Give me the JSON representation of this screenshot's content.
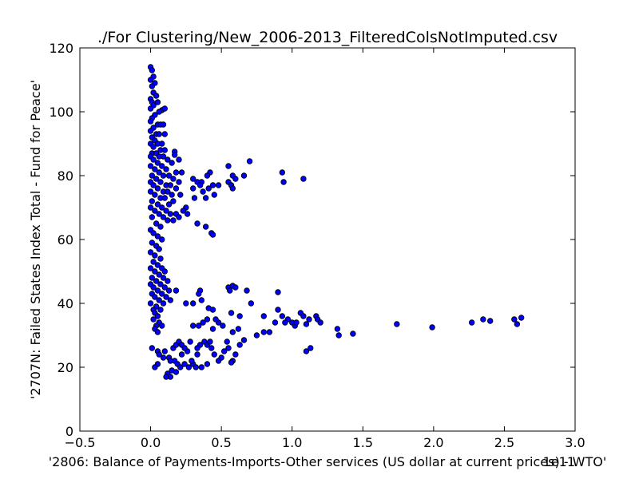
{
  "chart_data": {
    "type": "scatter",
    "title": "./For Clustering/New_2006-2013_FilteredColsNotImputed.csv",
    "xlabel": "'2806: Balance of Payments-Imports-Other services (US dollar at current prices) - WTO'",
    "ylabel": "'2707N: Failed States Index Total - Fund for Peace'",
    "x_offset_label": "1e11",
    "xlim": [
      -0.5,
      3.0
    ],
    "ylim": [
      0,
      120
    ],
    "x_ticks": [
      -0.5,
      0.0,
      0.5,
      1.0,
      1.5,
      2.0,
      2.5,
      3.0
    ],
    "x_tick_labels": [
      "−0.5",
      "0.0",
      "0.5",
      "1.0",
      "1.5",
      "2.0",
      "2.5",
      "3.0"
    ],
    "y_ticks": [
      0,
      20,
      40,
      60,
      80,
      100,
      120
    ],
    "y_tick_labels": [
      "0",
      "20",
      "40",
      "60",
      "80",
      "100",
      "120"
    ],
    "grid": false,
    "marker_color": "#0000ff",
    "marker_edge_color": "#000000",
    "points": [
      [
        0.0,
        114
      ],
      [
        0.01,
        113
      ],
      [
        0.02,
        111
      ],
      [
        0.0,
        110
      ],
      [
        0.03,
        109
      ],
      [
        0.01,
        108
      ],
      [
        0.02,
        106
      ],
      [
        0.04,
        105
      ],
      [
        0.0,
        104
      ],
      [
        0.01,
        103
      ],
      [
        0.05,
        103
      ],
      [
        0.02,
        102
      ],
      [
        0.0,
        101
      ],
      [
        0.08,
        100.5
      ],
      [
        0.1,
        101
      ],
      [
        0.06,
        100
      ],
      [
        0.03,
        99
      ],
      [
        0.01,
        98
      ],
      [
        0.0,
        97
      ],
      [
        0.05,
        96
      ],
      [
        0.07,
        96
      ],
      [
        0.09,
        96
      ],
      [
        0.02,
        95
      ],
      [
        0.0,
        94
      ],
      [
        0.04,
        93
      ],
      [
        0.06,
        93
      ],
      [
        0.1,
        93
      ],
      [
        0.01,
        92
      ],
      [
        0.03,
        91
      ],
      [
        0.0,
        90
      ],
      [
        0.05,
        90
      ],
      [
        0.08,
        90
      ],
      [
        0.02,
        89
      ],
      [
        0.07,
        88
      ],
      [
        0.1,
        88
      ],
      [
        0.17,
        87.5
      ],
      [
        0.01,
        87
      ],
      [
        0.04,
        87
      ],
      [
        0.17,
        86.5
      ],
      [
        0.0,
        86
      ],
      [
        0.06,
        86
      ],
      [
        0.09,
        86
      ],
      [
        0.12,
        85
      ],
      [
        0.2,
        85
      ],
      [
        0.02,
        85
      ],
      [
        0.05,
        84
      ],
      [
        0.15,
        84
      ],
      [
        0.08,
        83
      ],
      [
        0.0,
        83
      ],
      [
        0.11,
        82
      ],
      [
        0.03,
        82
      ],
      [
        0.18,
        81
      ],
      [
        0.22,
        81
      ],
      [
        0.06,
        81
      ],
      [
        0.01,
        80
      ],
      [
        0.13,
        80
      ],
      [
        0.09,
        80
      ],
      [
        0.16,
        79
      ],
      [
        0.04,
        79
      ],
      [
        0.0,
        78
      ],
      [
        0.2,
        78
      ],
      [
        0.07,
        78
      ],
      [
        0.11,
        77
      ],
      [
        0.14,
        77
      ],
      [
        0.02,
        77
      ],
      [
        0.18,
        76
      ],
      [
        0.05,
        76
      ],
      [
        0.09,
        75
      ],
      [
        0.12,
        75
      ],
      [
        0.0,
        75
      ],
      [
        0.15,
        74
      ],
      [
        0.03,
        74
      ],
      [
        0.21,
        74
      ],
      [
        0.07,
        73
      ],
      [
        0.1,
        73
      ],
      [
        0.01,
        72
      ],
      [
        0.16,
        72
      ],
      [
        0.05,
        71
      ],
      [
        0.13,
        71
      ],
      [
        0.0,
        70
      ],
      [
        0.08,
        70
      ],
      [
        0.11,
        69
      ],
      [
        0.03,
        69
      ],
      [
        0.14,
        68
      ],
      [
        0.18,
        68
      ],
      [
        0.06,
        68
      ],
      [
        0.2,
        67
      ],
      [
        0.09,
        67
      ],
      [
        0.01,
        67
      ],
      [
        0.12,
        66
      ],
      [
        0.16,
        66
      ],
      [
        0.04,
        65
      ],
      [
        0.07,
        64
      ],
      [
        0.0,
        63
      ],
      [
        0.02,
        62
      ],
      [
        0.05,
        61
      ],
      [
        0.08,
        60
      ],
      [
        0.01,
        59
      ],
      [
        0.04,
        58
      ],
      [
        0.06,
        57
      ],
      [
        0.0,
        56
      ],
      [
        0.03,
        55
      ],
      [
        0.07,
        54
      ],
      [
        0.02,
        53
      ],
      [
        0.05,
        52
      ],
      [
        0.0,
        51
      ],
      [
        0.08,
        51
      ],
      [
        0.1,
        50
      ],
      [
        0.03,
        50
      ],
      [
        0.06,
        49
      ],
      [
        0.01,
        48
      ],
      [
        0.09,
        48
      ],
      [
        0.04,
        47
      ],
      [
        0.12,
        47
      ],
      [
        0.0,
        46
      ],
      [
        0.07,
        46
      ],
      [
        0.02,
        45
      ],
      [
        0.1,
        45
      ],
      [
        0.05,
        44
      ],
      [
        0.13,
        44
      ],
      [
        0.18,
        44
      ],
      [
        0.01,
        43
      ],
      [
        0.08,
        43
      ],
      [
        0.03,
        42
      ],
      [
        0.11,
        42
      ],
      [
        0.06,
        41
      ],
      [
        0.14,
        41
      ],
      [
        0.0,
        40
      ],
      [
        0.09,
        40
      ],
      [
        0.04,
        39
      ],
      [
        0.02,
        38
      ],
      [
        0.07,
        38
      ],
      [
        0.03,
        37
      ],
      [
        0.05,
        36
      ],
      [
        0.02,
        35
      ],
      [
        0.06,
        34
      ],
      [
        0.04,
        33
      ],
      [
        0.08,
        33
      ],
      [
        0.03,
        32
      ],
      [
        0.05,
        31
      ],
      [
        0.3,
        79
      ],
      [
        0.33,
        78
      ],
      [
        0.36,
        78
      ],
      [
        0.35,
        77
      ],
      [
        0.42,
        81
      ],
      [
        0.4,
        80
      ],
      [
        0.44,
        77
      ],
      [
        0.41,
        76
      ],
      [
        0.48,
        77
      ],
      [
        0.3,
        76
      ],
      [
        0.37,
        75
      ],
      [
        0.45,
        74
      ],
      [
        0.39,
        73
      ],
      [
        0.31,
        73
      ],
      [
        0.25,
        70
      ],
      [
        0.23,
        69
      ],
      [
        0.26,
        68
      ],
      [
        0.33,
        65
      ],
      [
        0.39,
        64
      ],
      [
        0.43,
        62
      ],
      [
        0.44,
        61.5
      ],
      [
        0.55,
        83
      ],
      [
        0.58,
        80
      ],
      [
        0.6,
        79
      ],
      [
        0.66,
        80
      ],
      [
        0.7,
        84.5
      ],
      [
        0.55,
        78
      ],
      [
        0.57,
        77
      ],
      [
        0.58,
        76
      ],
      [
        0.93,
        81
      ],
      [
        0.94,
        78
      ],
      [
        1.08,
        79
      ],
      [
        0.55,
        45
      ],
      [
        0.58,
        45.5
      ],
      [
        0.6,
        45
      ],
      [
        0.56,
        44
      ],
      [
        0.68,
        44
      ],
      [
        0.9,
        43.5
      ],
      [
        0.35,
        44
      ],
      [
        0.34,
        43
      ],
      [
        0.36,
        41
      ],
      [
        0.41,
        38.5
      ],
      [
        0.3,
        40
      ],
      [
        0.25,
        40
      ],
      [
        0.44,
        38
      ],
      [
        0.57,
        37
      ],
      [
        0.71,
        40
      ],
      [
        0.63,
        36
      ],
      [
        0.8,
        36
      ],
      [
        0.9,
        38
      ],
      [
        0.93,
        36
      ],
      [
        0.97,
        35
      ],
      [
        1.0,
        34
      ],
      [
        0.95,
        34
      ],
      [
        1.02,
        33
      ],
      [
        1.06,
        37
      ],
      [
        1.08,
        36
      ],
      [
        1.12,
        35
      ],
      [
        1.17,
        36
      ],
      [
        1.18,
        35
      ],
      [
        1.2,
        34
      ],
      [
        1.1,
        33.5
      ],
      [
        1.03,
        34
      ],
      [
        0.88,
        34
      ],
      [
        0.8,
        31
      ],
      [
        0.84,
        31
      ],
      [
        0.75,
        30
      ],
      [
        0.62,
        32
      ],
      [
        0.58,
        31
      ],
      [
        0.51,
        33
      ],
      [
        0.48,
        34
      ],
      [
        0.46,
        35
      ],
      [
        0.44,
        32
      ],
      [
        0.4,
        35
      ],
      [
        0.37,
        34
      ],
      [
        0.34,
        33
      ],
      [
        0.3,
        33
      ],
      [
        1.32,
        32
      ],
      [
        1.33,
        30
      ],
      [
        1.43,
        30.5
      ],
      [
        1.74,
        33.5
      ],
      [
        1.99,
        32.5
      ],
      [
        2.27,
        34
      ],
      [
        2.35,
        35
      ],
      [
        2.4,
        34.5
      ],
      [
        2.57,
        35
      ],
      [
        2.59,
        33.5
      ],
      [
        2.62,
        35.5
      ],
      [
        1.1,
        25
      ],
      [
        1.13,
        26
      ],
      [
        0.01,
        26
      ],
      [
        0.05,
        25
      ],
      [
        0.1,
        25
      ],
      [
        0.06,
        24
      ],
      [
        0.09,
        23
      ],
      [
        0.13,
        23
      ],
      [
        0.16,
        26
      ],
      [
        0.18,
        27
      ],
      [
        0.2,
        28
      ],
      [
        0.22,
        27
      ],
      [
        0.14,
        22
      ],
      [
        0.17,
        22
      ],
      [
        0.19,
        21
      ],
      [
        0.05,
        21
      ],
      [
        0.03,
        20
      ],
      [
        0.21,
        20
      ],
      [
        0.24,
        21
      ],
      [
        0.27,
        20
      ],
      [
        0.3,
        21
      ],
      [
        0.32,
        20
      ],
      [
        0.29,
        22
      ],
      [
        0.22,
        24
      ],
      [
        0.26,
        25
      ],
      [
        0.33,
        24
      ],
      [
        0.35,
        27
      ],
      [
        0.38,
        28
      ],
      [
        0.4,
        27
      ],
      [
        0.43,
        26
      ],
      [
        0.45,
        24
      ],
      [
        0.48,
        22
      ],
      [
        0.4,
        21
      ],
      [
        0.36,
        20
      ],
      [
        0.5,
        23
      ],
      [
        0.52,
        25
      ],
      [
        0.55,
        26
      ],
      [
        0.58,
        22
      ],
      [
        0.57,
        21.5
      ],
      [
        0.6,
        24
      ],
      [
        0.63,
        27
      ],
      [
        0.66,
        28.5
      ],
      [
        0.15,
        19
      ],
      [
        0.12,
        18
      ],
      [
        0.11,
        17
      ],
      [
        0.14,
        17
      ],
      [
        0.18,
        18.5
      ],
      [
        0.42,
        28
      ],
      [
        0.54,
        28
      ],
      [
        0.28,
        28
      ],
      [
        0.33,
        26
      ],
      [
        0.24,
        26
      ]
    ]
  }
}
